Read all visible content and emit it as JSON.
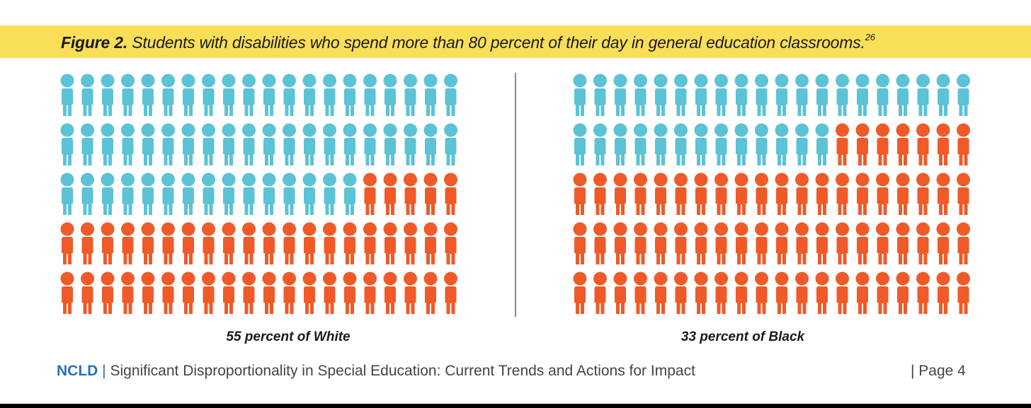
{
  "header": {
    "figure_label": "Figure 2.",
    "title": "Students with disabilities who spend more than 80 percent of their day in general education classrooms.",
    "footnote": "26"
  },
  "colors": {
    "highlight": "#5bc3d5",
    "remainder": "#f05a28",
    "banner": "#f9df58",
    "brand": "#2a6fb8"
  },
  "chart_data": [
    {
      "type": "pictograph",
      "title": "55 percent of White",
      "total_icons": 100,
      "rows": 5,
      "columns": 20,
      "highlighted_icons": 55,
      "percent_highlighted": 55,
      "highlight_color": "#5bc3d5",
      "remainder_color": "#f05a28"
    },
    {
      "type": "pictograph",
      "title": "33 percent of Black",
      "total_icons": 100,
      "rows": 5,
      "columns": 20,
      "highlighted_icons": 33,
      "percent_highlighted": 33,
      "highlight_color": "#5bc3d5",
      "remainder_color": "#f05a28"
    }
  ],
  "footer": {
    "brand": "NCLD",
    "separator": "|",
    "report_title": "Significant Disproportionality in Special Education: Current Trends and Actions for Impact",
    "page_label": "|  Page 4"
  }
}
